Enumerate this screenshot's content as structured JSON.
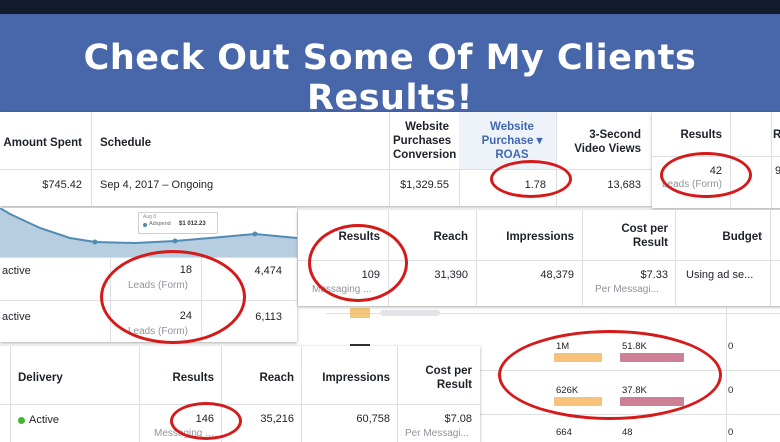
{
  "banner": {
    "title": "Check Out Some Of My Clients Results!"
  },
  "p1": {
    "headers": {
      "amount": "Amount Spent",
      "schedule": "Schedule",
      "conv": "Website Purchases Conversion",
      "roas": "Website Purchase ▾ ROAS",
      "video": "3-Second Video Views"
    },
    "row": {
      "amount": "$745.42",
      "schedule": "Sep 4, 2017 – Ongoing",
      "conv": "$1,329.55",
      "roas": "1.78",
      "video": "13,683"
    }
  },
  "p2": {
    "headers": {
      "results": "Results",
      "cut": "R"
    },
    "value": "42",
    "sub": "Leads (Form)",
    "cut_value": "9"
  },
  "p3": {
    "tooltip": {
      "date": "Aug 8",
      "label": "Adspend",
      "value": "$1 012.23"
    },
    "rows": [
      {
        "status": "active",
        "results": "18",
        "sub": "Leads (Form)",
        "reach": "4,474"
      },
      {
        "status": "active",
        "results": "24",
        "sub": "Leads (Form)",
        "reach": "6,113"
      }
    ]
  },
  "p4": {
    "headers": {
      "results": "Results",
      "reach": "Reach",
      "impressions": "Impressions",
      "cpr": "Cost per Result",
      "budget": "Budget"
    },
    "row": {
      "results": "109",
      "results_sub": "Messaging ...",
      "reach": "31,390",
      "impressions": "48,379",
      "cpr": "$7.33",
      "cpr_sub": "Per Messagi...",
      "budget": "Using ad se..."
    }
  },
  "p5": {
    "rows": [
      {
        "a": "1M",
        "b": "51.8K",
        "c": "0"
      },
      {
        "a": "626K",
        "b": "37.8K",
        "c": "0"
      },
      {
        "a": "664",
        "b": "48",
        "c": "0"
      }
    ],
    "colors": {
      "orange": "#f7c27a",
      "pink": "#cc7f95"
    }
  },
  "p6": {
    "headers": {
      "delivery": "Delivery",
      "results": "Results",
      "reach": "Reach",
      "impressions": "Impressions",
      "cpr": "Cost per Result"
    },
    "row": {
      "delivery": "Active",
      "results": "146",
      "results_sub": "Messaging ...",
      "reach": "35,216",
      "impressions": "60,758",
      "cpr": "$7.08",
      "cpr_sub": "Per Messagi..."
    }
  },
  "colors": {
    "banner": "#4867aa",
    "ring": "#d51a1a",
    "link": "#4267b2",
    "active": "#42b72a"
  }
}
